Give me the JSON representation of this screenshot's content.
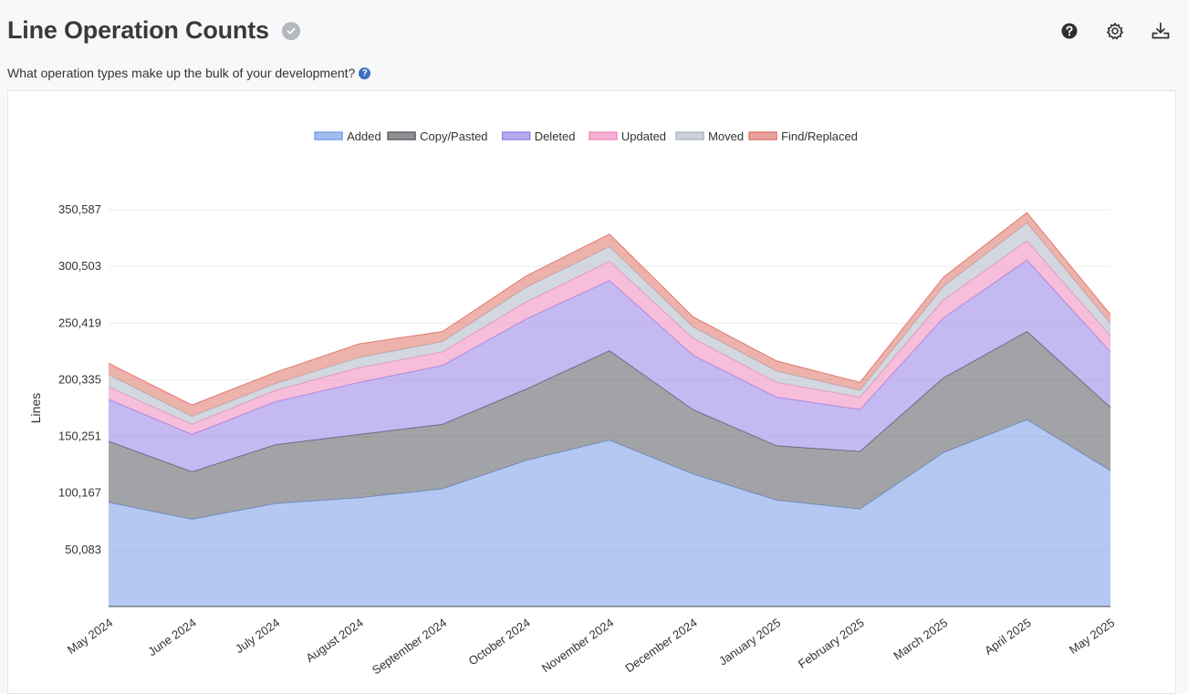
{
  "header": {
    "title": "Line Operation Counts",
    "subtitle": "What operation types make up the bulk of your development?"
  },
  "toolbar": {
    "icons": [
      "help-icon",
      "settings-icon",
      "download-icon"
    ]
  },
  "chart_data": {
    "type": "area",
    "stacked": true,
    "title": "",
    "xlabel": "",
    "ylabel": "Lines",
    "legend_position": "top",
    "grid": true,
    "ylim": [
      0,
      350587
    ],
    "yticks": [
      50083,
      100167,
      150251,
      200335,
      250419,
      300503,
      350587
    ],
    "ytick_labels": [
      "50,083",
      "100,167",
      "150,251",
      "200,335",
      "250,419",
      "300,503",
      "350,587"
    ],
    "categories": [
      "May 2024",
      "June 2024",
      "July 2024",
      "August 2024",
      "September 2024",
      "October 2024",
      "November 2024",
      "December 2024",
      "January 2025",
      "February 2025",
      "March 2025",
      "April 2025",
      "May 2025"
    ],
    "series": [
      {
        "name": "Added",
        "color": "#7da1e8",
        "values": [
          92000,
          77000,
          91000,
          96000,
          104000,
          129000,
          147000,
          117000,
          94000,
          86000,
          136000,
          165000,
          120000
        ]
      },
      {
        "name": "Copy/Pasted",
        "color": "#5f6166",
        "values": [
          54000,
          42000,
          52000,
          56000,
          57000,
          63000,
          79000,
          57000,
          48000,
          51000,
          66000,
          78000,
          56000
        ]
      },
      {
        "name": "Deleted",
        "color": "#9b86e8",
        "values": [
          37000,
          33000,
          38000,
          46000,
          52000,
          62000,
          62000,
          48000,
          43000,
          37000,
          53000,
          63000,
          49000
        ]
      },
      {
        "name": "Updated",
        "color": "#ef8fc0",
        "values": [
          11000,
          9000,
          10000,
          13000,
          12000,
          15000,
          17000,
          15000,
          13000,
          11000,
          16000,
          17000,
          14000
        ]
      },
      {
        "name": "Moved",
        "color": "#b4bac8",
        "values": [
          11000,
          7000,
          6000,
          9000,
          9000,
          13000,
          13000,
          10000,
          10000,
          6000,
          12000,
          16000,
          11000
        ]
      },
      {
        "name": "Find/Replaced",
        "color": "#e07a70",
        "values": [
          10000,
          10000,
          10000,
          12000,
          9000,
          10000,
          11000,
          9000,
          9000,
          7000,
          8000,
          9000,
          8000
        ]
      }
    ]
  }
}
